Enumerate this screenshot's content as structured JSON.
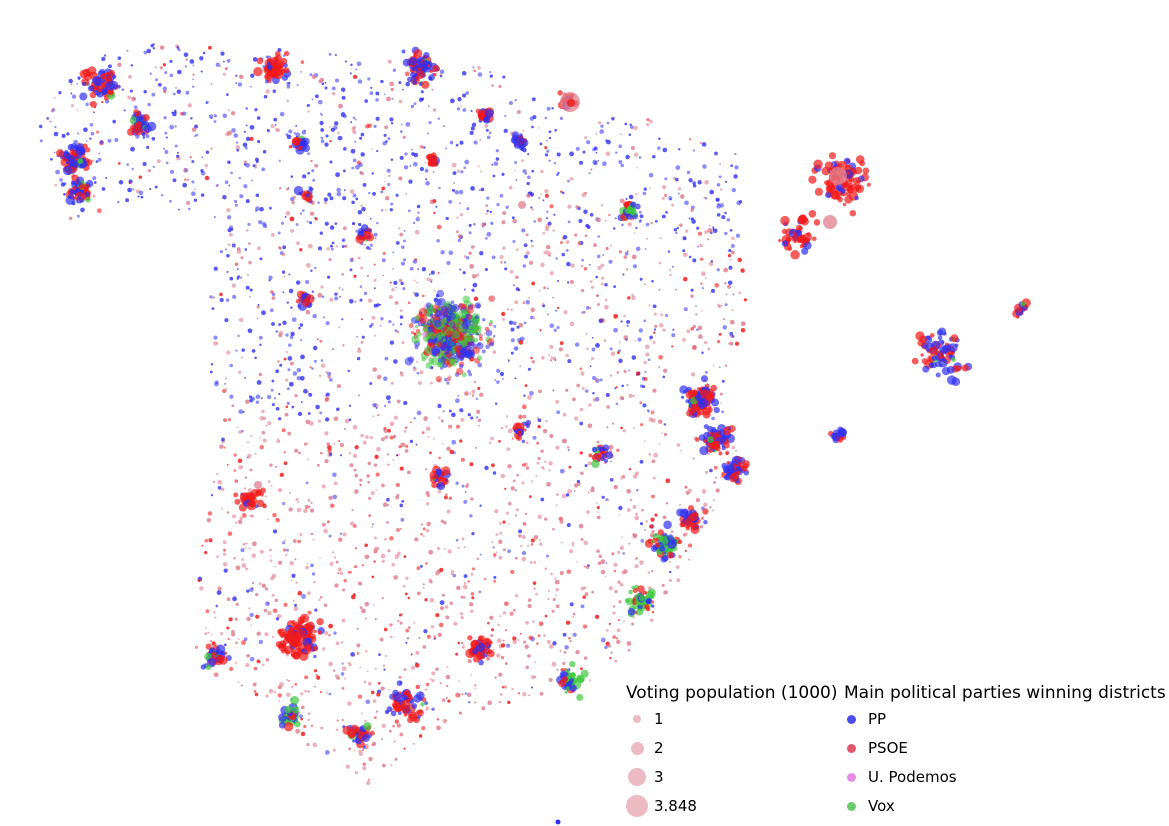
{
  "legend": {
    "size_title": "Voting population (1000)",
    "size_items": [
      {
        "label": "1",
        "value": 1
      },
      {
        "label": "2",
        "value": 2
      },
      {
        "label": "3",
        "value": 3
      },
      {
        "label": "3.848",
        "value": 3.848
      }
    ],
    "party_title": "Main political parties winning districts",
    "party_items": [
      {
        "label": "PP",
        "color": "#4c4cef"
      },
      {
        "label": "PSOE",
        "color": "#e0566f"
      },
      {
        "label": "U. Podemos",
        "color": "#e48ce6"
      },
      {
        "label": "Vox",
        "color": "#6ccc6c"
      }
    ]
  },
  "map_colors": {
    "pp": "#2f2ff2",
    "psoe_strong": "#f21a1a",
    "psoe_light": "#e07f8e",
    "podemos": "#e079e0",
    "vox": "#3cc83c",
    "size_legend": "#e6a3ad"
  }
}
